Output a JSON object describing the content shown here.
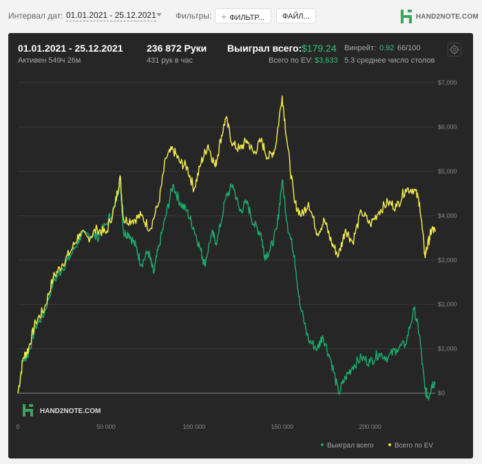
{
  "toolbar": {
    "date_interval_label": "Интервал дат:",
    "date_interval_value": "01.01.2021 - 25.12.2021",
    "filters_label": "Фильтры:",
    "filter_button": "ФИЛЬТР...",
    "file_button": "ФАЙЛ...",
    "logo_text": "HAND2NOTE.COM"
  },
  "summary": {
    "period": "01.01.2021 - 25.12.2021",
    "active": "Активен 549ч 26м",
    "hands": "236 872 Руки",
    "hands_per_hour": "431 рук в час",
    "won_label": "Выиграл всего:",
    "won_value": "$179.24",
    "ev_label": "Всего по EV:",
    "ev_value": "$3,633",
    "winrate_label": "Винрейт:",
    "winrate_value": "0.92",
    "winrate_unit": "66/100",
    "tables": "5.3 среднее число столов"
  },
  "watermark": "HAND2NOTE.COM",
  "colors": {
    "won": "#1fa86a",
    "ev": "#f2e94e",
    "accent": "#35c475",
    "background": "#262626"
  },
  "chart_data": {
    "type": "line",
    "xlabel": "",
    "ylabel": "",
    "xlim": [
      0,
      236872
    ],
    "ylim": [
      -200,
      7000
    ],
    "x_ticks": [
      "0",
      "50 000",
      "100 000",
      "150 000",
      "200 000"
    ],
    "x_tick_values": [
      0,
      50000,
      100000,
      150000,
      200000
    ],
    "y_ticks": [
      "$0",
      "$1,000",
      "$2,000",
      "$3,000",
      "$4,000",
      "$5,000",
      "$6,000",
      "$7,000"
    ],
    "y_tick_values": [
      0,
      1000,
      2000,
      3000,
      4000,
      5000,
      6000,
      7000
    ],
    "grid": true,
    "legend_position": "bottom-right",
    "series": [
      {
        "name": "Выиграл всего",
        "color": "#1fa86a",
        "points": [
          [
            0,
            0
          ],
          [
            3000,
            750
          ],
          [
            6000,
            900
          ],
          [
            10000,
            1500
          ],
          [
            15000,
            1800
          ],
          [
            20000,
            2500
          ],
          [
            25000,
            2800
          ],
          [
            30000,
            3100
          ],
          [
            35000,
            3500
          ],
          [
            40000,
            3600
          ],
          [
            45000,
            3500
          ],
          [
            50000,
            3800
          ],
          [
            55000,
            4200
          ],
          [
            58000,
            4800
          ],
          [
            60000,
            3600
          ],
          [
            63000,
            3600
          ],
          [
            67000,
            3300
          ],
          [
            70000,
            2900
          ],
          [
            74000,
            3200
          ],
          [
            77000,
            2700
          ],
          [
            80000,
            3300
          ],
          [
            84000,
            4000
          ],
          [
            88000,
            4700
          ],
          [
            92000,
            4300
          ],
          [
            96000,
            4100
          ],
          [
            100000,
            3700
          ],
          [
            104000,
            3200
          ],
          [
            106000,
            2900
          ],
          [
            110000,
            3600
          ],
          [
            113000,
            3400
          ],
          [
            118000,
            4400
          ],
          [
            122000,
            4700
          ],
          [
            126000,
            4100
          ],
          [
            130000,
            4300
          ],
          [
            134000,
            3800
          ],
          [
            138000,
            3600
          ],
          [
            140000,
            3100
          ],
          [
            143000,
            3200
          ],
          [
            147000,
            3700
          ],
          [
            150000,
            4800
          ],
          [
            153000,
            3800
          ],
          [
            157000,
            3100
          ],
          [
            160000,
            2000
          ],
          [
            165000,
            1200
          ],
          [
            170000,
            1000
          ],
          [
            173000,
            1300
          ],
          [
            178000,
            700
          ],
          [
            182000,
            0
          ],
          [
            186000,
            350
          ],
          [
            190000,
            600
          ],
          [
            195000,
            800
          ],
          [
            200000,
            700
          ],
          [
            205000,
            900
          ],
          [
            210000,
            800
          ],
          [
            215000,
            1000
          ],
          [
            220000,
            1100
          ],
          [
            225000,
            1900
          ],
          [
            228000,
            1300
          ],
          [
            231000,
            100
          ],
          [
            233000,
            -100
          ],
          [
            235000,
            200
          ],
          [
            236872,
            250
          ]
        ]
      },
      {
        "name": "Всего по EV",
        "color": "#f2e94e",
        "points": [
          [
            0,
            0
          ],
          [
            3000,
            800
          ],
          [
            6000,
            1000
          ],
          [
            10000,
            1600
          ],
          [
            15000,
            1900
          ],
          [
            20000,
            2600
          ],
          [
            25000,
            2900
          ],
          [
            30000,
            3200
          ],
          [
            35000,
            3600
          ],
          [
            40000,
            3500
          ],
          [
            45000,
            3700
          ],
          [
            50000,
            3600
          ],
          [
            55000,
            4200
          ],
          [
            58000,
            4900
          ],
          [
            60000,
            3900
          ],
          [
            65000,
            3900
          ],
          [
            70000,
            4000
          ],
          [
            75000,
            3700
          ],
          [
            80000,
            4300
          ],
          [
            84000,
            5300
          ],
          [
            88000,
            5500
          ],
          [
            92000,
            5200
          ],
          [
            96000,
            5100
          ],
          [
            100000,
            4600
          ],
          [
            104000,
            5200
          ],
          [
            108000,
            5600
          ],
          [
            112000,
            5100
          ],
          [
            115000,
            5700
          ],
          [
            118000,
            6200
          ],
          [
            122000,
            5600
          ],
          [
            126000,
            5500
          ],
          [
            130000,
            5700
          ],
          [
            134000,
            5400
          ],
          [
            138000,
            5700
          ],
          [
            142000,
            5300
          ],
          [
            146000,
            5500
          ],
          [
            150000,
            6700
          ],
          [
            153000,
            5600
          ],
          [
            157000,
            4300
          ],
          [
            161000,
            4000
          ],
          [
            165000,
            4300
          ],
          [
            170000,
            3600
          ],
          [
            174000,
            3900
          ],
          [
            178000,
            3400
          ],
          [
            182000,
            3100
          ],
          [
            186000,
            3700
          ],
          [
            190000,
            3400
          ],
          [
            195000,
            4100
          ],
          [
            200000,
            3800
          ],
          [
            205000,
            4100
          ],
          [
            210000,
            4300
          ],
          [
            215000,
            4200
          ],
          [
            220000,
            4600
          ],
          [
            225000,
            4600
          ],
          [
            228000,
            4300
          ],
          [
            231000,
            3100
          ],
          [
            233000,
            3400
          ],
          [
            235000,
            3700
          ],
          [
            236872,
            3633
          ]
        ]
      }
    ]
  }
}
